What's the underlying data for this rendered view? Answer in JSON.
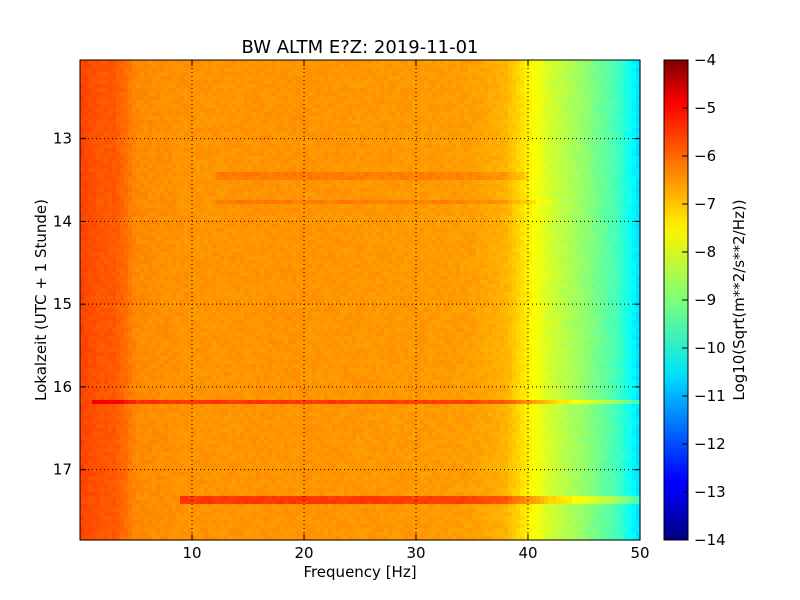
{
  "chart_data": {
    "type": "heatmap",
    "title": "BW ALTM E?Z: 2019-11-01",
    "xlabel": "Frequency [Hz]",
    "ylabel": "Lokalzeit (UTC + 1 Stunde)",
    "xlim": [
      0,
      50
    ],
    "ylim": [
      12.05,
      17.85
    ],
    "y_inverted": true,
    "x_ticks": [
      10,
      20,
      30,
      40,
      50
    ],
    "y_ticks": [
      13,
      14,
      15,
      16,
      17
    ],
    "grid": true,
    "grid_style": "dotted",
    "colormap": "jet",
    "colorbar": {
      "label": "Log10(Sqrt(m**2/s**2/Hz))",
      "min": -14,
      "max": -4,
      "ticks": [
        -4,
        -5,
        -6,
        -7,
        -8,
        -9,
        -10,
        -11,
        -12,
        -13,
        -14
      ]
    },
    "spectrum_profile": {
      "frequency_hz": [
        0,
        1,
        2,
        3,
        4,
        5,
        10,
        20,
        30,
        35,
        38,
        40,
        42,
        45,
        48,
        50
      ],
      "log10_amplitude": [
        -5.9,
        -6.0,
        -6.1,
        -6.1,
        -6.3,
        -6.6,
        -6.7,
        -6.7,
        -6.75,
        -6.8,
        -7.0,
        -7.6,
        -8.2,
        -8.8,
        -9.6,
        -10.6
      ]
    },
    "horizontal_events": [
      {
        "time": 13.45,
        "f_start": 12,
        "f_end": 40,
        "delta": 0.25
      },
      {
        "time": 13.75,
        "f_start": 12,
        "f_end": 42,
        "delta": 0.25
      },
      {
        "time": 16.18,
        "f_start": 1,
        "f_end": 50,
        "delta": 0.9
      },
      {
        "time": 17.37,
        "f_start": 9,
        "f_end": 50,
        "delta": 0.9
      }
    ]
  }
}
